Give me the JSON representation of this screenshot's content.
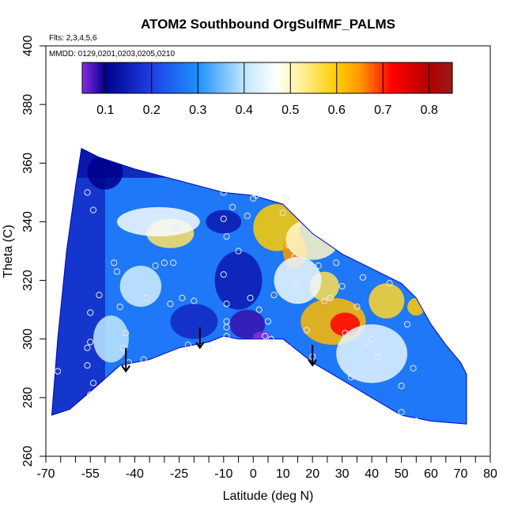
{
  "chart_data": {
    "type": "heatmap",
    "title": "ATOM2 Southbound OrgSulfMF_PALMS",
    "flights_note": "Flts: 2,3,4,5,6",
    "dates_note": "MMDD: 0129,0201,0203,0205,0210",
    "xlabel": "Latitude (deg N)",
    "ylabel": "Theta (C)",
    "xlim": [
      -70,
      80
    ],
    "ylim": [
      260,
      400
    ],
    "x_ticks": [
      -70,
      -55,
      -40,
      -25,
      -10,
      0,
      10,
      20,
      30,
      40,
      50,
      60,
      70,
      80
    ],
    "x_minor_ticks": [
      -65,
      -60,
      -50,
      -45,
      -35,
      -30,
      -20,
      -15,
      -5,
      5,
      15,
      25,
      35,
      45,
      55,
      65,
      75
    ],
    "y_ticks": [
      260,
      280,
      300,
      320,
      340,
      360,
      380,
      400
    ],
    "colorbar": {
      "range": [
        0.05,
        0.85
      ],
      "ticks": [
        0.1,
        0.2,
        0.3,
        0.4,
        0.5,
        0.6,
        0.7,
        0.8
      ],
      "stops": [
        [
          0.05,
          "#8a2be2"
        ],
        [
          0.1,
          "#00008b"
        ],
        [
          0.2,
          "#1f3fe6"
        ],
        [
          0.3,
          "#1e90ff"
        ],
        [
          0.4,
          "#bfe6ff"
        ],
        [
          0.47,
          "#ffffff"
        ],
        [
          0.52,
          "#fff2a0"
        ],
        [
          0.6,
          "#ffcc00"
        ],
        [
          0.65,
          "#ff9900"
        ],
        [
          0.72,
          "#ff0000"
        ],
        [
          0.8,
          "#b40000"
        ],
        [
          0.85,
          "#9a1a1a"
        ]
      ]
    },
    "envelope": {
      "top": [
        [
          -68,
          274
        ],
        [
          -66,
          300
        ],
        [
          -63,
          330
        ],
        [
          -60,
          352
        ],
        [
          -58,
          365
        ],
        [
          -52,
          362
        ],
        [
          -40,
          358
        ],
        [
          -25,
          354
        ],
        [
          -10,
          350
        ],
        [
          0,
          349
        ],
        [
          10,
          346
        ],
        [
          20,
          336
        ],
        [
          30,
          329
        ],
        [
          40,
          324
        ],
        [
          50,
          319
        ],
        [
          55,
          314
        ],
        [
          60,
          305
        ],
        [
          65,
          298
        ],
        [
          70,
          292
        ],
        [
          72,
          288
        ]
      ],
      "bottom": [
        [
          72,
          271
        ],
        [
          60,
          272
        ],
        [
          50,
          274
        ],
        [
          40,
          280
        ],
        [
          30,
          286
        ],
        [
          20,
          292
        ],
        [
          15,
          296
        ],
        [
          10,
          300
        ],
        [
          5,
          300
        ],
        [
          -5,
          300
        ],
        [
          -10,
          301
        ],
        [
          -15,
          299
        ],
        [
          -25,
          297
        ],
        [
          -35,
          293
        ],
        [
          -45,
          291
        ],
        [
          -55,
          282
        ],
        [
          -62,
          276
        ],
        [
          -68,
          274
        ]
      ]
    },
    "blobs": [
      {
        "x": 8,
        "y": 338,
        "rx": 8,
        "ry": 8,
        "value": 0.6
      },
      {
        "x": 14,
        "y": 330,
        "rx": 4,
        "ry": 6,
        "value": 0.65
      },
      {
        "x": 20,
        "y": 334,
        "rx": 9,
        "ry": 7,
        "value": 0.5
      },
      {
        "x": 27,
        "y": 306,
        "rx": 11,
        "ry": 8,
        "value": 0.62
      },
      {
        "x": 31,
        "y": 305,
        "rx": 5,
        "ry": 4,
        "value": 0.72
      },
      {
        "x": 24,
        "y": 318,
        "rx": 5,
        "ry": 5,
        "value": 0.56
      },
      {
        "x": 45,
        "y": 313,
        "rx": 6,
        "ry": 6,
        "value": 0.58
      },
      {
        "x": 55,
        "y": 311,
        "rx": 3,
        "ry": 3,
        "value": 0.6
      },
      {
        "x": -28,
        "y": 336,
        "rx": 8,
        "ry": 5,
        "value": 0.55
      },
      {
        "x": -32,
        "y": 340,
        "rx": 14,
        "ry": 5,
        "value": 0.46
      },
      {
        "x": -38,
        "y": 318,
        "rx": 7,
        "ry": 7,
        "value": 0.42
      },
      {
        "x": -48,
        "y": 300,
        "rx": 6,
        "ry": 8,
        "value": 0.4
      },
      {
        "x": 40,
        "y": 295,
        "rx": 12,
        "ry": 10,
        "value": 0.44
      },
      {
        "x": 15,
        "y": 320,
        "rx": 8,
        "ry": 8,
        "value": 0.45
      },
      {
        "x": -5,
        "y": 320,
        "rx": 8,
        "ry": 10,
        "value": 0.14
      },
      {
        "x": -2,
        "y": 305,
        "rx": 6,
        "ry": 5,
        "value": 0.08
      },
      {
        "x": 3,
        "y": 301,
        "rx": 3,
        "ry": 1.5,
        "value": 0.05
      },
      {
        "x": -20,
        "y": 306,
        "rx": 8,
        "ry": 6,
        "value": 0.16
      },
      {
        "x": -50,
        "y": 357,
        "rx": 6,
        "ry": 6,
        "value": 0.1
      },
      {
        "x": -10,
        "y": 340,
        "rx": 6,
        "ry": 4,
        "value": 0.14
      }
    ],
    "observations": [
      [
        -66,
        289
      ],
      [
        -56,
        350
      ],
      [
        -54,
        344
      ],
      [
        -55,
        309
      ],
      [
        -56,
        297
      ],
      [
        -55,
        299
      ],
      [
        -56,
        291
      ],
      [
        -54,
        285
      ],
      [
        -55,
        281
      ],
      [
        -52,
        315
      ],
      [
        -47,
        326
      ],
      [
        -46,
        323
      ],
      [
        -45,
        311
      ],
      [
        -43,
        302
      ],
      [
        -44,
        297
      ],
      [
        -42,
        292
      ],
      [
        -37,
        293
      ],
      [
        -36,
        314
      ],
      [
        -35,
        338
      ],
      [
        -33,
        325
      ],
      [
        -30,
        326
      ],
      [
        -28,
        312
      ],
      [
        -27,
        326
      ],
      [
        -26,
        338
      ],
      [
        -24,
        314
      ],
      [
        -22,
        298
      ],
      [
        -20,
        313
      ],
      [
        -15,
        297
      ],
      [
        -10,
        350
      ],
      [
        -10,
        341
      ],
      [
        -9,
        335
      ],
      [
        -10,
        322
      ],
      [
        -9,
        312
      ],
      [
        -9,
        306
      ],
      [
        -9,
        304
      ],
      [
        -9,
        301
      ],
      [
        -7,
        345
      ],
      [
        -5,
        330
      ],
      [
        -2,
        342
      ],
      [
        -1,
        314
      ],
      [
        0,
        348
      ],
      [
        1,
        349
      ],
      [
        2,
        310
      ],
      [
        4,
        301
      ],
      [
        5,
        306
      ],
      [
        6,
        300
      ],
      [
        7,
        315
      ],
      [
        10,
        343
      ],
      [
        11,
        348
      ],
      [
        12,
        332
      ],
      [
        14,
        328
      ],
      [
        12,
        297
      ],
      [
        15,
        319
      ],
      [
        18,
        303
      ],
      [
        20,
        294
      ],
      [
        22,
        325
      ],
      [
        24,
        313
      ],
      [
        26,
        314
      ],
      [
        28,
        326
      ],
      [
        30,
        318
      ],
      [
        31,
        302
      ],
      [
        33,
        287
      ],
      [
        35,
        311
      ],
      [
        37,
        321
      ],
      [
        38,
        299
      ],
      [
        40,
        300
      ],
      [
        42,
        294
      ],
      [
        46,
        319
      ],
      [
        50,
        284
      ],
      [
        50,
        275
      ],
      [
        52,
        305
      ],
      [
        54,
        290
      ],
      [
        55,
        272
      ]
    ],
    "arrows": [
      {
        "x": -43,
        "y_from": 297,
        "y_to": 289
      },
      {
        "x": -18,
        "y_from": 304,
        "y_to": 297
      },
      {
        "x": 20,
        "y_from": 298,
        "y_to": 291
      }
    ]
  }
}
